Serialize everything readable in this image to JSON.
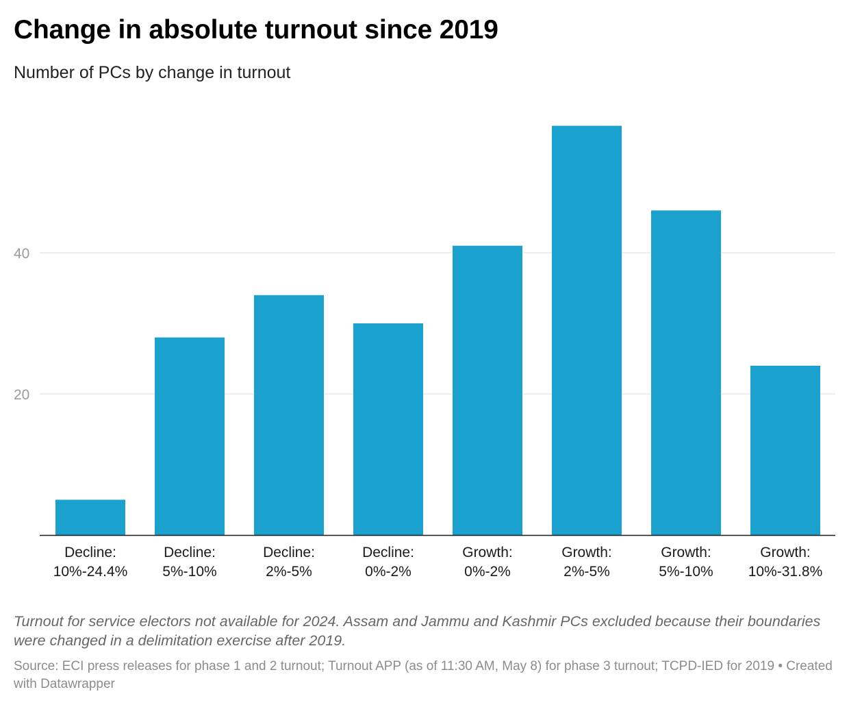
{
  "header": {
    "title": "Change in absolute turnout since 2019",
    "subtitle": "Number of PCs by change in turnout"
  },
  "chart_data": {
    "type": "bar",
    "categories": [
      [
        "Decline:",
        "10%-24.4%"
      ],
      [
        "Decline:",
        "5%-10%"
      ],
      [
        "Decline:",
        "2%-5%"
      ],
      [
        "Decline:",
        "0%-2%"
      ],
      [
        "Growth:",
        "0%-2%"
      ],
      [
        "Growth:",
        "2%-5%"
      ],
      [
        "Growth:",
        "5%-10%"
      ],
      [
        "Growth:",
        "10%-31.8%"
      ]
    ],
    "values": [
      5,
      28,
      34,
      30,
      41,
      58,
      46,
      24
    ],
    "ylim": [
      0,
      60
    ],
    "yticks": [
      20,
      40
    ],
    "grid": true,
    "bar_color": "#1aa1cd"
  },
  "footer": {
    "notes": "Turnout for service electors not available for 2024. Assam and Jammu and Kashmir PCs excluded because their boundaries were changed in a delimitation exercise after 2019.",
    "source": "Source: ECI press releases for phase 1 and 2 turnout; Turnout APP (as of 11:30 AM, May 8) for phase 3 turnout; TCPD-IED for 2019 • Created with Datawrapper"
  }
}
